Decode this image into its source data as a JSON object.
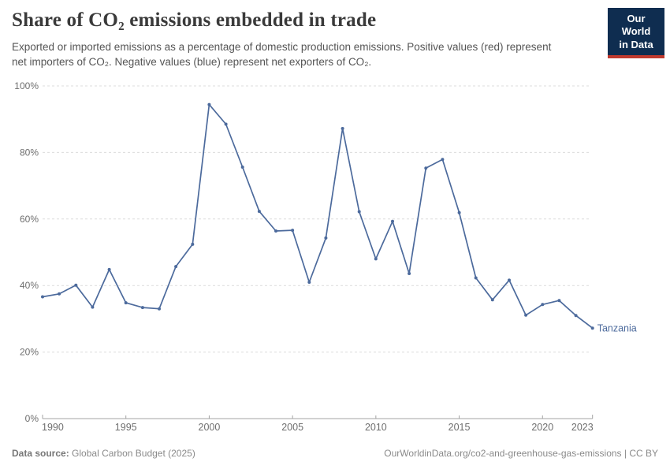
{
  "header": {
    "title": "Share of CO₂ emissions embedded in trade",
    "subtitle": "Exported or imported emissions as a percentage of domestic production emissions. Positive values (red) represent net importers of CO₂. Negative values (blue) represent net exporters of CO₂.",
    "logo": {
      "line1": "Our World",
      "line2": "in Data"
    }
  },
  "chart_data": {
    "type": "line",
    "title": "Share of CO₂ emissions embedded in trade",
    "x": [
      1990,
      1991,
      1992,
      1993,
      1994,
      1995,
      1996,
      1997,
      1998,
      1999,
      2000,
      2001,
      2002,
      2003,
      2004,
      2005,
      2006,
      2007,
      2008,
      2009,
      2010,
      2011,
      2012,
      2013,
      2014,
      2015,
      2016,
      2017,
      2018,
      2019,
      2020,
      2021,
      2022,
      2023
    ],
    "series": [
      {
        "name": "Tanzania",
        "values": [
          36.6,
          37.5,
          40.1,
          33.5,
          44.8,
          34.8,
          33.4,
          33.0,
          45.7,
          52.4,
          94.4,
          88.5,
          75.6,
          62.3,
          56.4,
          56.6,
          41.0,
          54.3,
          87.2,
          62.2,
          48.0,
          59.3,
          43.6,
          75.3,
          77.9,
          61.9,
          42.3,
          35.7,
          41.6,
          31.1,
          34.3,
          35.5,
          31.0,
          27.2
        ]
      }
    ],
    "xlabel": "",
    "ylabel": "",
    "x_ticks": [
      1990,
      1995,
      2000,
      2005,
      2010,
      2015,
      2020,
      2023
    ],
    "y_ticks": [
      0,
      20,
      40,
      60,
      80,
      100
    ],
    "y_tick_labels": [
      "0%",
      "20%",
      "40%",
      "60%",
      "80%",
      "100%"
    ],
    "ylim": [
      0,
      100
    ],
    "grid": "horizontal-dashed",
    "legend_position": "end-of-line-label",
    "end_label": "Tanzania"
  },
  "footer": {
    "source_label": "Data source:",
    "source_value": "Global Carbon Budget (2025)",
    "license": "OurWorldinData.org/co2-and-greenhouse-gas-emissions | CC BY"
  },
  "colors": {
    "line": "#4C6A9C",
    "entity_label": "#4C6A9C",
    "grid": "#dcdcdc",
    "axis": "#a3a3a3",
    "tick_text": "#6e6e6e",
    "logo_bg": "#0f2d50",
    "logo_red": "#c03a2e",
    "title_text": "#3a3a3a",
    "subtitle_text": "#555555"
  }
}
